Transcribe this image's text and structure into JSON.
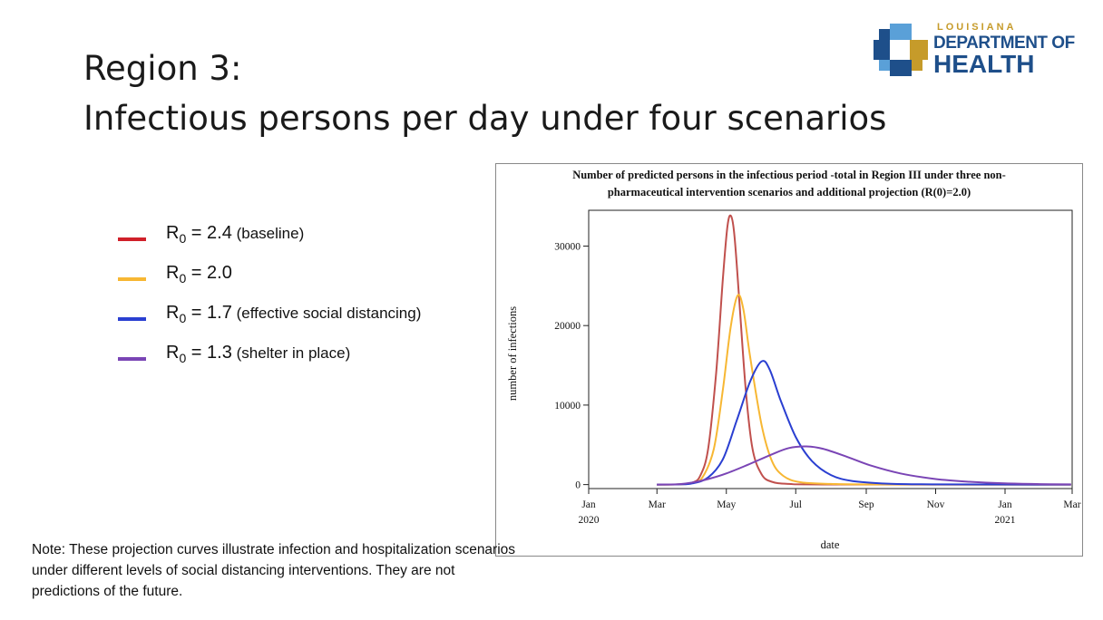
{
  "slide": {
    "title_line1": "Region 3:",
    "title_line2": "Infectious persons per day under four scenarios"
  },
  "logo": {
    "line1": "LOUISIANA",
    "line2": "DEPARTMENT OF",
    "line3": "HEALTH",
    "colors": {
      "blue": "#1e4f8a",
      "gold": "#c69b2a",
      "light_blue": "#5aa0d8"
    }
  },
  "legend": [
    {
      "prefix": "R",
      "sub": "0",
      "value": " = 2.4",
      "note": " (baseline)",
      "color": "#d0202a"
    },
    {
      "prefix": "R",
      "sub": "0",
      "value": " = 2.0",
      "note": "",
      "color": "#f7b733"
    },
    {
      "prefix": "R",
      "sub": "0",
      "value": " = 1.7",
      "note": " (effective social distancing)",
      "color": "#2a3fd1"
    },
    {
      "prefix": "R",
      "sub": "0",
      "value": " = 1.3",
      "note": " (shelter in place)",
      "color": "#7a45b5"
    }
  ],
  "note": "Note: These projection curves illustrate infection and hospitalization scenarios under different levels of social distancing interventions. They are not predictions of the future.",
  "chart_data": {
    "type": "line",
    "title": "Number of predicted persons in the infectious period -total in Region III under three non-pharmaceutical intervention scenarios and additional projection (R(0)=2.0)",
    "title_line1": "Number of predicted persons in the infectious period -total in Region III under three non-",
    "title_line2": "pharmaceutical intervention scenarios and additional projection (R(0)=2.0)",
    "xlabel": "date",
    "ylabel": "number of infections",
    "x_ticks": [
      {
        "date": "2020-01-01",
        "label": "Jan",
        "year": "2020"
      },
      {
        "date": "2020-03-01",
        "label": "Mar",
        "year": ""
      },
      {
        "date": "2020-05-01",
        "label": "May",
        "year": ""
      },
      {
        "date": "2020-07-01",
        "label": "Jul",
        "year": ""
      },
      {
        "date": "2020-09-01",
        "label": "Sep",
        "year": ""
      },
      {
        "date": "2020-11-01",
        "label": "Nov",
        "year": ""
      },
      {
        "date": "2021-01-01",
        "label": "Jan",
        "year": "2021"
      },
      {
        "date": "2021-03-01",
        "label": "Mar",
        "year": ""
      }
    ],
    "y_ticks": [
      0,
      10000,
      20000,
      30000
    ],
    "xlim": [
      "2020-01-01",
      "2021-03-01"
    ],
    "ylim": [
      -500,
      34500
    ],
    "grid": false,
    "series": [
      {
        "color": "#c0504d",
        "points": [
          [
            "2020-03-01",
            0
          ],
          [
            "2020-03-20",
            30
          ],
          [
            "2020-04-01",
            250
          ],
          [
            "2020-04-08",
            1100
          ],
          [
            "2020-04-15",
            4500
          ],
          [
            "2020-04-22",
            14000
          ],
          [
            "2020-04-28",
            26000
          ],
          [
            "2020-05-02",
            32500
          ],
          [
            "2020-05-05",
            33800
          ],
          [
            "2020-05-08",
            31500
          ],
          [
            "2020-05-12",
            24000
          ],
          [
            "2020-05-18",
            12000
          ],
          [
            "2020-05-24",
            4500
          ],
          [
            "2020-06-01",
            1300
          ],
          [
            "2020-06-10",
            350
          ],
          [
            "2020-06-25",
            80
          ],
          [
            "2020-08-01",
            10
          ],
          [
            "2021-02-28",
            0
          ]
        ]
      },
      {
        "color": "#f7b733",
        "points": [
          [
            "2020-03-01",
            0
          ],
          [
            "2020-03-20",
            30
          ],
          [
            "2020-04-01",
            200
          ],
          [
            "2020-04-10",
            900
          ],
          [
            "2020-04-20",
            4500
          ],
          [
            "2020-04-28",
            12000
          ],
          [
            "2020-05-05",
            20000
          ],
          [
            "2020-05-11",
            23800
          ],
          [
            "2020-05-16",
            22000
          ],
          [
            "2020-05-22",
            16000
          ],
          [
            "2020-06-01",
            7500
          ],
          [
            "2020-06-10",
            3000
          ],
          [
            "2020-06-20",
            1100
          ],
          [
            "2020-07-05",
            300
          ],
          [
            "2020-08-01",
            80
          ],
          [
            "2020-09-15",
            10
          ],
          [
            "2021-02-28",
            0
          ]
        ]
      },
      {
        "color": "#2a3fd1",
        "points": [
          [
            "2020-03-01",
            0
          ],
          [
            "2020-03-20",
            30
          ],
          [
            "2020-04-01",
            150
          ],
          [
            "2020-04-15",
            900
          ],
          [
            "2020-04-28",
            3200
          ],
          [
            "2020-05-10",
            8000
          ],
          [
            "2020-05-22",
            13000
          ],
          [
            "2020-06-01",
            15500
          ],
          [
            "2020-06-08",
            14500
          ],
          [
            "2020-06-18",
            10500
          ],
          [
            "2020-07-01",
            6000
          ],
          [
            "2020-07-15",
            3000
          ],
          [
            "2020-08-01",
            1200
          ],
          [
            "2020-08-20",
            450
          ],
          [
            "2020-09-20",
            120
          ],
          [
            "2020-11-01",
            30
          ],
          [
            "2021-02-28",
            0
          ]
        ]
      },
      {
        "color": "#7a45b5",
        "points": [
          [
            "2020-03-01",
            0
          ],
          [
            "2020-03-20",
            50
          ],
          [
            "2020-04-01",
            250
          ],
          [
            "2020-04-15",
            700
          ],
          [
            "2020-05-01",
            1400
          ],
          [
            "2020-05-20",
            2500
          ],
          [
            "2020-06-10",
            3800
          ],
          [
            "2020-06-25",
            4600
          ],
          [
            "2020-07-10",
            4800
          ],
          [
            "2020-07-25",
            4500
          ],
          [
            "2020-08-15",
            3500
          ],
          [
            "2020-09-05",
            2400
          ],
          [
            "2020-10-01",
            1400
          ],
          [
            "2020-11-01",
            700
          ],
          [
            "2020-12-01",
            350
          ],
          [
            "2021-01-01",
            150
          ],
          [
            "2021-02-01",
            60
          ],
          [
            "2021-02-28",
            30
          ]
        ]
      }
    ]
  }
}
